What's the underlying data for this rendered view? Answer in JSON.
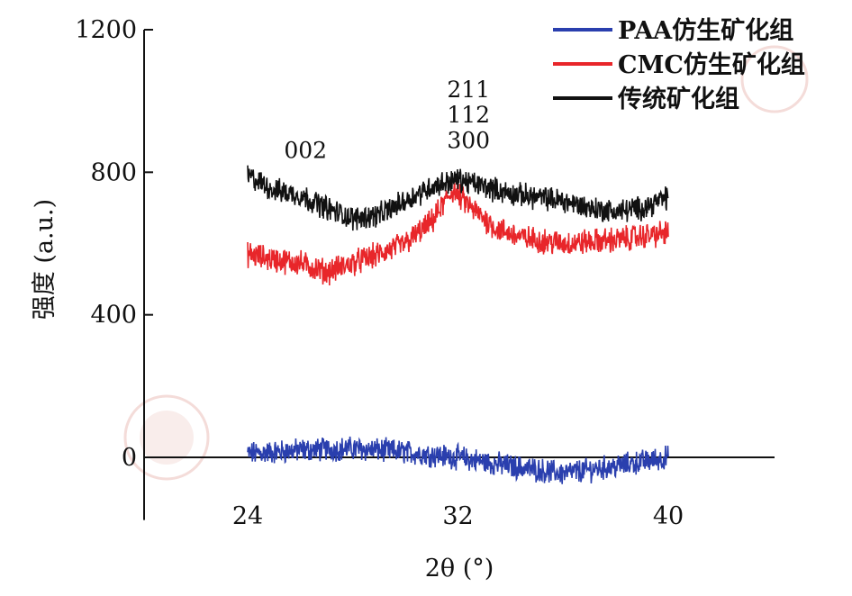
{
  "chart_data": {
    "type": "line",
    "title": "",
    "xlabel": "2θ (°)",
    "ylabel": "强度 (a.u.)",
    "xlim": [
      22,
      46
    ],
    "ylim": [
      -80,
      1200
    ],
    "xticks": [
      24,
      32,
      40
    ],
    "yticks": [
      0,
      400,
      800,
      1200
    ],
    "legend_position": "top-right",
    "grid": false,
    "series": [
      {
        "name": "PAA仿生矿化组",
        "color": "#2a3fae",
        "x_range": [
          24,
          40
        ],
        "x": [
          24,
          26,
          28,
          30,
          32,
          34,
          36,
          38,
          40
        ],
        "values": [
          10,
          20,
          25,
          15,
          0,
          -25,
          -45,
          -25,
          0
        ]
      },
      {
        "name": "CMC仿生矿化组",
        "color": "#e8262a",
        "x_range": [
          24,
          40
        ],
        "x": [
          24,
          25,
          26,
          27,
          28,
          29,
          30,
          31,
          31.8,
          32.5,
          33.5,
          34.5,
          36,
          38,
          40
        ],
        "values": [
          570,
          555,
          545,
          520,
          545,
          570,
          600,
          660,
          750,
          700,
          640,
          615,
          600,
          610,
          630
        ]
      },
      {
        "name": "传统矿化组",
        "color": "#111111",
        "x_range": [
          24,
          40
        ],
        "x": [
          24,
          25,
          26,
          27,
          28,
          29,
          30,
          31,
          32,
          33,
          34,
          35,
          36,
          37,
          38,
          39,
          40
        ],
        "values": [
          790,
          750,
          735,
          700,
          670,
          680,
          720,
          760,
          780,
          760,
          740,
          730,
          720,
          700,
          690,
          700,
          730
        ]
      }
    ],
    "annotations": [
      {
        "text": "002",
        "x": 26.2,
        "y": 840
      },
      {
        "text": "211",
        "x": 32.4,
        "y": 1010
      },
      {
        "text": "112",
        "x": 32.4,
        "y": 940
      },
      {
        "text": "300",
        "x": 32.4,
        "y": 868
      }
    ]
  }
}
